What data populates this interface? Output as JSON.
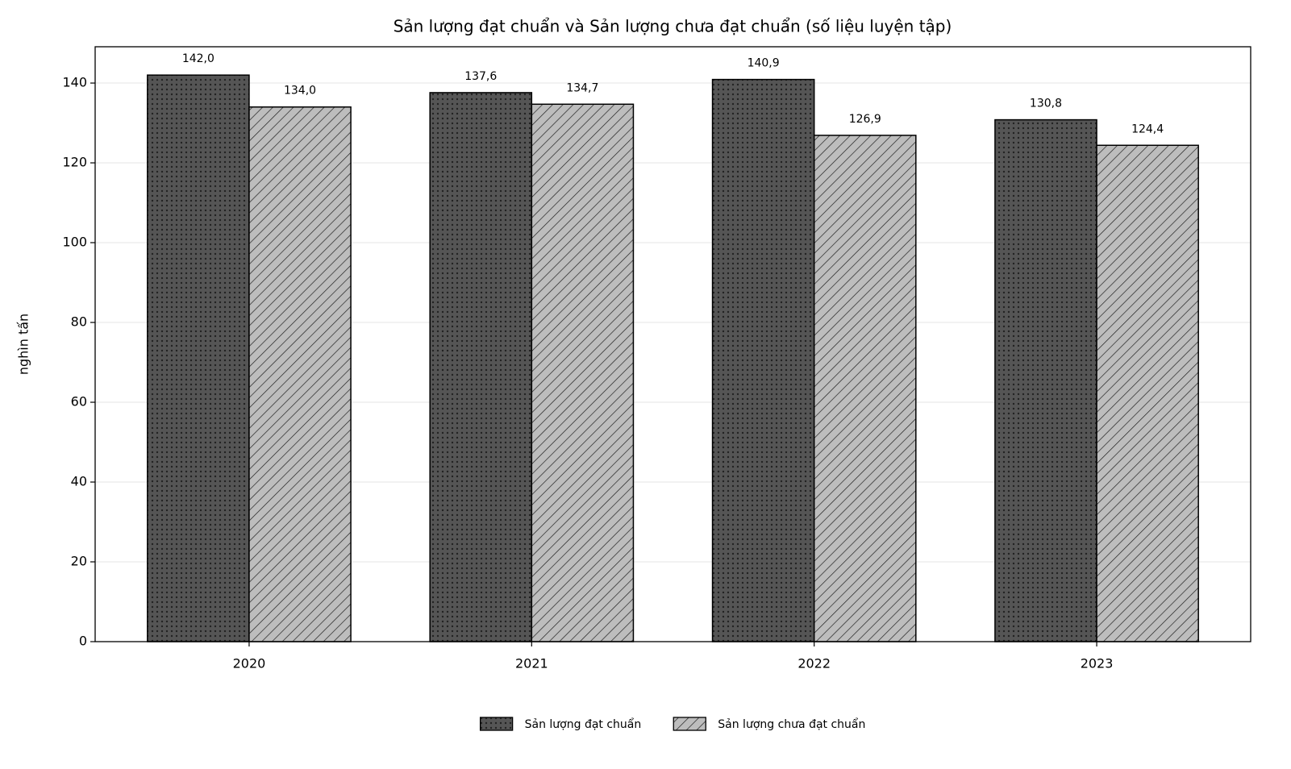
{
  "chart_data": {
    "type": "bar",
    "title": "Sản lượng đạt chuẩn và Sản lượng chưa đạt chuẩn (số liệu luyện tập)",
    "y_label": "nghìn tấn",
    "categories": [
      "2020",
      "2021",
      "2022",
      "2023"
    ],
    "series": [
      {
        "name": "Sản lượng đạt chuẩn",
        "color": "#555555",
        "pattern": "dots",
        "values": [
          142.0,
          137.6,
          140.9,
          130.8
        ],
        "value_labels": [
          "142,0",
          "137,6",
          "140,9",
          "130,8"
        ]
      },
      {
        "name": "Sản lượng chưa đạt chuẩn",
        "color": "#bdbdbd",
        "pattern": "hatch",
        "values": [
          134.0,
          134.7,
          126.9,
          124.4
        ],
        "value_labels": [
          "134,0",
          "134,7",
          "126,9",
          "124,4"
        ]
      }
    ],
    "ylim": [
      0,
      149.1
    ],
    "yticks": [
      0,
      20,
      40,
      60,
      80,
      100,
      120,
      140
    ],
    "grid": true,
    "legend": "bottom"
  }
}
